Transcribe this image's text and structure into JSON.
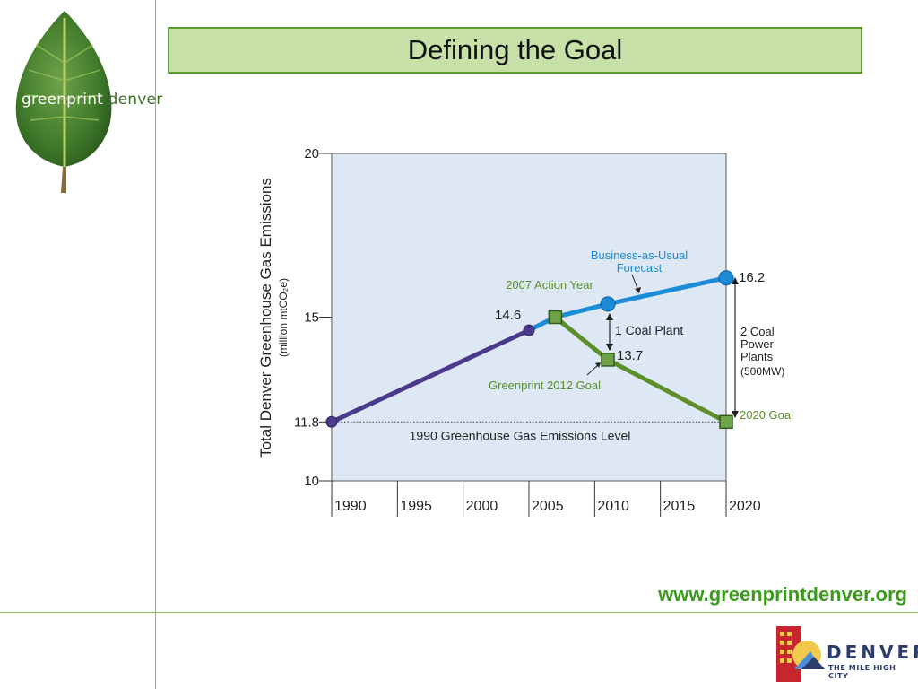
{
  "slide": {
    "title": "Defining the Goal",
    "url": "www.greenprintdenver.org"
  },
  "brand": {
    "left_word": "greenprint",
    "right_word": "denver"
  },
  "denver_logo": {
    "name": "DENVER",
    "tagline": "THE MILE HIGH CITY",
    "icon": "city-sun-icon"
  },
  "colors": {
    "historical": "#4b3a8c",
    "forecast": "#1a8cd8",
    "goal": "#5a8f2a",
    "plot_bg": "#dde8f4",
    "accent_green": "#3d9a1f"
  },
  "chart_data": {
    "type": "line",
    "ylabel": "Total Denver Greenhouse Gas Emissions",
    "ylabel_units": "(million mtCO₂e)",
    "xlim": [
      1990,
      2020
    ],
    "ylim": [
      10,
      20
    ],
    "x_ticks": [
      "1990",
      "1995",
      "2000",
      "2005",
      "2010",
      "2015",
      "2020"
    ],
    "y_ticks": [
      {
        "value": 20,
        "label": "20"
      },
      {
        "value": 15,
        "label": "15"
      },
      {
        "value": 11.8,
        "label": "11.8"
      },
      {
        "value": 10,
        "label": "10"
      }
    ],
    "series": [
      {
        "key": "historical",
        "points": [
          [
            1990,
            11.8
          ],
          [
            2005,
            14.6
          ]
        ]
      },
      {
        "key": "forecast",
        "points": [
          [
            2005,
            14.6
          ],
          [
            2007,
            15
          ],
          [
            2011,
            15.4
          ],
          [
            2020,
            16.2
          ]
        ]
      },
      {
        "key": "goal",
        "points": [
          [
            2007,
            15
          ],
          [
            2011,
            13.7
          ],
          [
            2020,
            11.8
          ]
        ]
      }
    ],
    "reference_line": {
      "value": 11.8,
      "label": "1990 Greenhouse Gas Emissions Level"
    },
    "annotations": {
      "bau_line1": "Business-as-Usual",
      "bau_line2": "Forecast",
      "action_year": "2007 Action Year",
      "label_14_6": "14.6",
      "label_16_2": "16.2",
      "label_13_7": "13.7",
      "coal_one": "1 Coal Plant",
      "goal_2012": "Greenprint 2012 Goal",
      "goal_2020": "2020 Goal",
      "coal_two": [
        "2 Coal",
        "Power",
        "Plants",
        "(500MW)"
      ]
    }
  }
}
